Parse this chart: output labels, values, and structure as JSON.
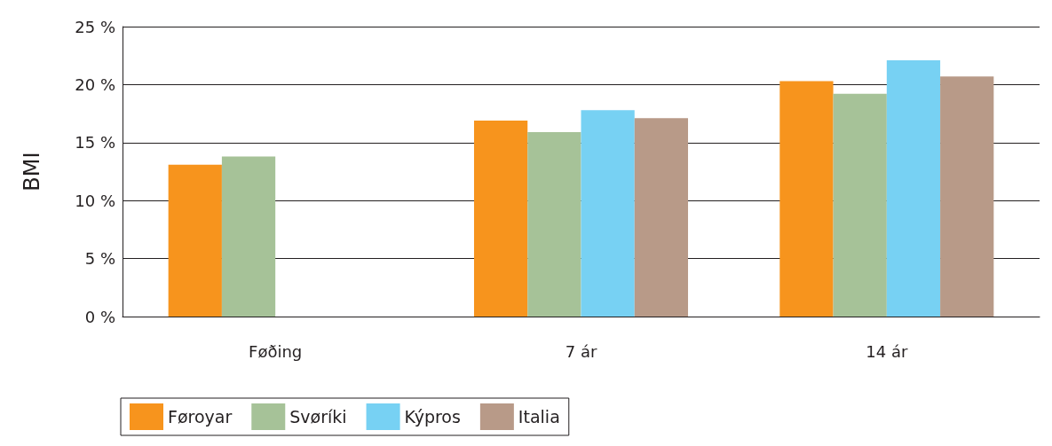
{
  "chart_data": {
    "type": "bar",
    "ylabel": "BMI",
    "categories": [
      "Føðing",
      "7 ár",
      "14 ár"
    ],
    "series": [
      {
        "name": "Føroyar",
        "color": "#f7941d",
        "values": [
          13.1,
          16.9,
          20.3
        ]
      },
      {
        "name": "Svøríki",
        "color": "#a6c298",
        "values": [
          13.8,
          15.9,
          19.2
        ]
      },
      {
        "name": "Kýpros",
        "color": "#77d1f3",
        "values": [
          null,
          17.8,
          22.1
        ]
      },
      {
        "name": "Italia",
        "color": "#b89a88",
        "values": [
          null,
          17.1,
          20.7
        ]
      }
    ],
    "ylim": [
      0,
      25
    ],
    "yticks": [
      {
        "value": 0,
        "label": "0 %"
      },
      {
        "value": 5,
        "label": "5 %"
      },
      {
        "value": 10,
        "label": "10 %"
      },
      {
        "value": 15,
        "label": "15 %"
      },
      {
        "value": 20,
        "label": "20 %"
      },
      {
        "value": 25,
        "label": "25 %"
      }
    ],
    "grid": "y",
    "legend": "bottom"
  }
}
